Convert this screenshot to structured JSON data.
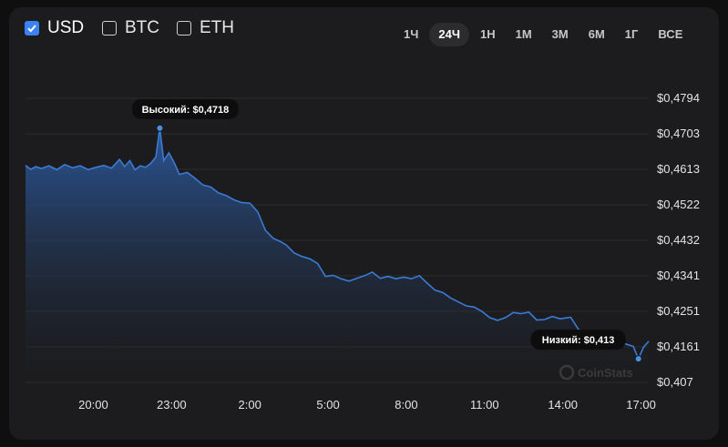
{
  "currencies": [
    {
      "label": "USD",
      "checked": true
    },
    {
      "label": "BTC",
      "checked": false
    },
    {
      "label": "ETH",
      "checked": false
    }
  ],
  "ranges": [
    "1Ч",
    "24Ч",
    "1Н",
    "1М",
    "3М",
    "6М",
    "1Г",
    "ВСЕ"
  ],
  "active_range": "24Ч",
  "watermark": "CoinStats",
  "chart_data": {
    "type": "area",
    "y_ticks": [
      "$0,4794",
      "$0,4703",
      "$0,4613",
      "$0,4522",
      "$0,4432",
      "$0,4341",
      "$0,4251",
      "$0,4161",
      "$0,407"
    ],
    "ylim": [
      0.407,
      0.4794
    ],
    "x_ticks": [
      "20:00",
      "23:00",
      "2:00",
      "5:00",
      "8:00",
      "11:00",
      "14:00",
      "17:00"
    ],
    "x_tick_hours": [
      20,
      23,
      26,
      29,
      32,
      35,
      38,
      41
    ],
    "xlim": [
      17.4,
      41.4
    ],
    "series": [
      {
        "x": [
          17.4,
          17.6,
          17.8,
          18.0,
          18.3,
          18.6,
          18.9,
          19.2,
          19.5,
          19.8,
          20.1,
          20.4,
          20.7,
          21.0,
          21.2,
          21.4,
          21.6,
          21.8,
          22.0,
          22.2,
          22.4,
          22.55,
          22.7,
          22.9,
          23.1,
          23.3,
          23.6,
          23.9,
          24.2,
          24.5,
          24.8,
          25.1,
          25.4,
          25.7,
          26.0,
          26.3,
          26.6,
          26.9,
          27.2,
          27.4,
          27.7,
          28.0,
          28.3,
          28.6,
          28.9,
          29.2,
          29.5,
          29.8,
          30.1,
          30.4,
          30.7,
          31.0,
          31.3,
          31.6,
          31.9,
          32.2,
          32.5,
          32.8,
          33.1,
          33.4,
          33.7,
          34.0,
          34.3,
          34.6,
          34.9,
          35.2,
          35.5,
          35.8,
          36.1,
          36.4,
          36.7,
          37.0,
          37.3,
          37.6,
          37.9,
          38.1,
          38.3,
          38.6,
          38.9,
          39.2,
          39.5,
          39.8,
          40.1,
          40.4,
          40.7,
          40.9,
          41.1,
          41.3
        ],
        "values": [
          0.4623,
          0.4613,
          0.462,
          0.4615,
          0.4622,
          0.4612,
          0.4625,
          0.4617,
          0.4622,
          0.4612,
          0.4618,
          0.4623,
          0.4616,
          0.4638,
          0.462,
          0.4635,
          0.4612,
          0.4622,
          0.4618,
          0.4628,
          0.4645,
          0.4718,
          0.4635,
          0.4655,
          0.463,
          0.46,
          0.4605,
          0.459,
          0.4573,
          0.4568,
          0.4553,
          0.4546,
          0.4535,
          0.4528,
          0.4527,
          0.4505,
          0.4457,
          0.4437,
          0.4428,
          0.442,
          0.44,
          0.4391,
          0.4385,
          0.4373,
          0.434,
          0.4343,
          0.4334,
          0.4328,
          0.4335,
          0.4342,
          0.4351,
          0.4335,
          0.434,
          0.4334,
          0.4338,
          0.4334,
          0.4342,
          0.4323,
          0.4305,
          0.4299,
          0.4285,
          0.4275,
          0.4265,
          0.4262,
          0.4251,
          0.4235,
          0.4228,
          0.4235,
          0.4248,
          0.4245,
          0.4249,
          0.4229,
          0.423,
          0.4238,
          0.4232,
          0.4234,
          0.4236,
          0.4205,
          0.419,
          0.4185,
          0.418,
          0.4183,
          0.417,
          0.4168,
          0.4162,
          0.413,
          0.416,
          0.4175
        ]
      }
    ],
    "high": {
      "label": "Высокий: $0,4718",
      "x": 22.55,
      "value": 0.4718
    },
    "low": {
      "label": "Низкий: $0,413",
      "x": 40.9,
      "value": 0.413
    },
    "colors": {
      "line": "#3a7bd5",
      "marker": "#4a90e2"
    },
    "grid": true
  }
}
